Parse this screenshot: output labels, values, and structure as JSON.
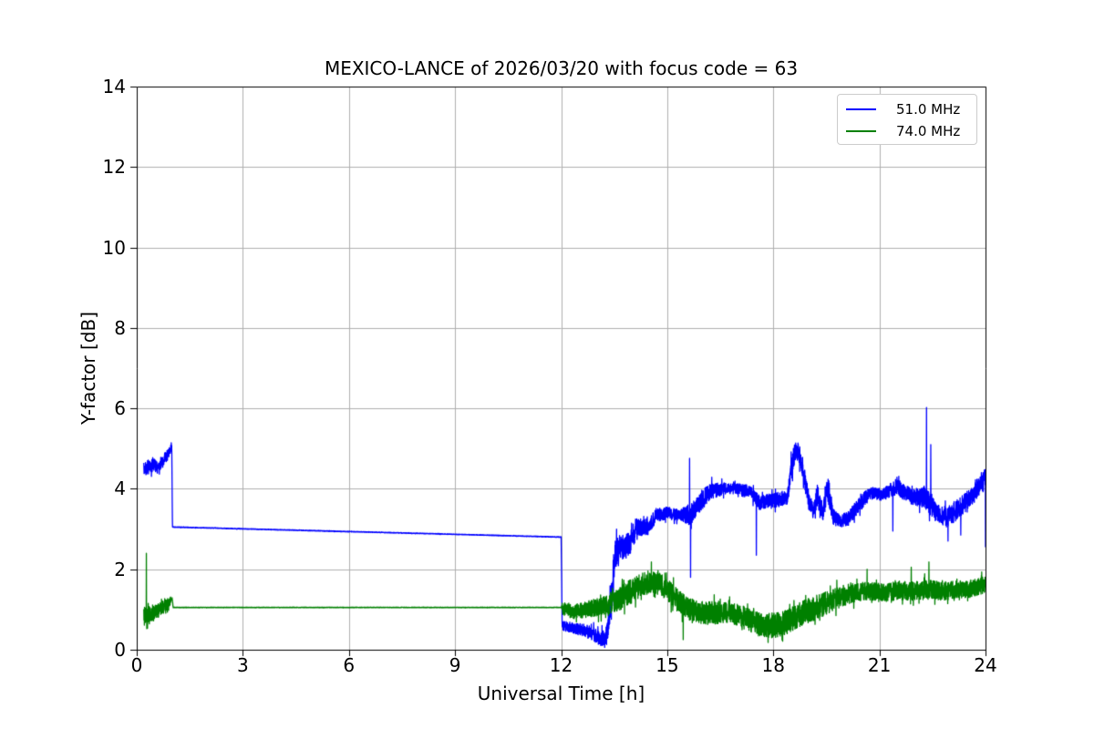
{
  "chart_data": {
    "type": "line",
    "title": "MEXICO-LANCE of 2026/03/20 with focus code = 63",
    "xlabel": "Universal Time [h]",
    "ylabel": "Y-factor [dB]",
    "xlim": [
      0,
      24
    ],
    "ylim": [
      0,
      14
    ],
    "xticks": [
      0,
      3,
      6,
      9,
      12,
      15,
      18,
      21,
      24
    ],
    "yticks": [
      0,
      2,
      4,
      6,
      8,
      10,
      12,
      14
    ],
    "grid": true,
    "grid_color": "#b0b0b0",
    "axis_color": "#000000",
    "background": "#ffffff",
    "legend": {
      "position": "top-right",
      "entries": [
        {
          "label": "51.0 MHz",
          "color": "#0000ff"
        },
        {
          "label": "74.0 MHz",
          "color": "#008000"
        }
      ]
    },
    "series_note": "envelope rows are [x_hours, mean_dB, noise_halfamplitude_dB]; spikes are [x_hours, value_dB] outliers read from the plot",
    "series": [
      {
        "name": "51.0 MHz",
        "color": "#0000ff",
        "envelope": [
          [
            0.2,
            4.5,
            0.15
          ],
          [
            0.35,
            4.55,
            0.18
          ],
          [
            0.5,
            4.6,
            0.15
          ],
          [
            0.62,
            4.5,
            0.16
          ],
          [
            0.75,
            4.7,
            0.15
          ],
          [
            0.88,
            4.85,
            0.14
          ],
          [
            0.97,
            5.02,
            0.08
          ],
          [
            0.99,
            5.08,
            0.03
          ],
          [
            1.01,
            3.05,
            0.008
          ],
          [
            12.0,
            2.8,
            0.008
          ],
          [
            12.03,
            0.6,
            0.12
          ],
          [
            12.3,
            0.55,
            0.13
          ],
          [
            12.6,
            0.5,
            0.15
          ],
          [
            12.9,
            0.4,
            0.18
          ],
          [
            13.1,
            0.28,
            0.18
          ],
          [
            13.28,
            0.33,
            0.22
          ],
          [
            13.42,
            1.3,
            0.55
          ],
          [
            13.55,
            2.45,
            0.45
          ],
          [
            13.75,
            2.55,
            0.3
          ],
          [
            13.95,
            2.65,
            0.3
          ],
          [
            14.15,
            3.05,
            0.22
          ],
          [
            14.45,
            3.05,
            0.2
          ],
          [
            14.7,
            3.35,
            0.18
          ],
          [
            15.0,
            3.4,
            0.15
          ],
          [
            15.35,
            3.35,
            0.15
          ],
          [
            15.65,
            3.35,
            0.25
          ],
          [
            15.95,
            3.7,
            0.25
          ],
          [
            16.25,
            3.95,
            0.2
          ],
          [
            16.6,
            4.0,
            0.15
          ],
          [
            17.0,
            4.0,
            0.13
          ],
          [
            17.35,
            3.95,
            0.15
          ],
          [
            17.6,
            3.65,
            0.2
          ],
          [
            18.0,
            3.7,
            0.18
          ],
          [
            18.4,
            3.8,
            0.2
          ],
          [
            18.52,
            4.6,
            0.3
          ],
          [
            18.65,
            5.0,
            0.22
          ],
          [
            18.8,
            4.7,
            0.28
          ],
          [
            19.0,
            3.7,
            0.25
          ],
          [
            19.12,
            3.45,
            0.18
          ],
          [
            19.25,
            3.85,
            0.3
          ],
          [
            19.4,
            3.4,
            0.2
          ],
          [
            19.55,
            4.0,
            0.35
          ],
          [
            19.7,
            3.3,
            0.2
          ],
          [
            19.9,
            3.2,
            0.15
          ],
          [
            20.1,
            3.25,
            0.18
          ],
          [
            20.35,
            3.5,
            0.2
          ],
          [
            20.6,
            3.8,
            0.18
          ],
          [
            20.85,
            3.9,
            0.15
          ],
          [
            21.1,
            3.85,
            0.15
          ],
          [
            21.3,
            3.95,
            0.18
          ],
          [
            21.5,
            4.1,
            0.22
          ],
          [
            21.7,
            3.9,
            0.2
          ],
          [
            21.95,
            3.8,
            0.2
          ],
          [
            22.2,
            3.8,
            0.25
          ],
          [
            22.4,
            3.7,
            0.3
          ],
          [
            22.6,
            3.4,
            0.22
          ],
          [
            22.9,
            3.3,
            0.25
          ],
          [
            23.1,
            3.4,
            0.25
          ],
          [
            23.35,
            3.6,
            0.25
          ],
          [
            23.6,
            3.8,
            0.22
          ],
          [
            23.85,
            4.05,
            0.25
          ],
          [
            24.0,
            4.3,
            0.28
          ]
        ],
        "spikes": [
          [
            15.63,
            4.76
          ],
          [
            15.66,
            1.8
          ],
          [
            17.52,
            2.35
          ],
          [
            21.38,
            2.95
          ],
          [
            22.33,
            6.02
          ],
          [
            22.45,
            5.1
          ],
          [
            22.94,
            2.7
          ],
          [
            23.3,
            2.85
          ],
          [
            24.0,
            2.55
          ]
        ]
      },
      {
        "name": "74.0 MHz",
        "color": "#008000",
        "envelope": [
          [
            0.2,
            0.78,
            0.28
          ],
          [
            0.4,
            0.88,
            0.22
          ],
          [
            0.6,
            0.98,
            0.18
          ],
          [
            0.8,
            1.08,
            0.15
          ],
          [
            0.95,
            1.22,
            0.1
          ],
          [
            1.0,
            1.28,
            0.05
          ],
          [
            1.03,
            1.05,
            0.007
          ],
          [
            12.0,
            1.05,
            0.007
          ],
          [
            12.04,
            1.0,
            0.18
          ],
          [
            12.4,
            0.95,
            0.18
          ],
          [
            12.7,
            1.0,
            0.2
          ],
          [
            13.0,
            1.05,
            0.22
          ],
          [
            13.3,
            1.12,
            0.25
          ],
          [
            13.6,
            1.25,
            0.3
          ],
          [
            13.9,
            1.42,
            0.3
          ],
          [
            14.2,
            1.58,
            0.3
          ],
          [
            14.5,
            1.7,
            0.28
          ],
          [
            14.75,
            1.65,
            0.28
          ],
          [
            15.0,
            1.5,
            0.28
          ],
          [
            15.3,
            1.22,
            0.28
          ],
          [
            15.6,
            1.02,
            0.28
          ],
          [
            16.0,
            0.92,
            0.28
          ],
          [
            16.4,
            0.92,
            0.28
          ],
          [
            16.8,
            0.95,
            0.28
          ],
          [
            17.2,
            0.78,
            0.28
          ],
          [
            17.6,
            0.62,
            0.3
          ],
          [
            18.0,
            0.6,
            0.32
          ],
          [
            18.4,
            0.7,
            0.3
          ],
          [
            18.8,
            0.9,
            0.3
          ],
          [
            19.2,
            1.05,
            0.3
          ],
          [
            19.6,
            1.2,
            0.28
          ],
          [
            20.0,
            1.35,
            0.26
          ],
          [
            20.4,
            1.45,
            0.24
          ],
          [
            20.8,
            1.45,
            0.22
          ],
          [
            21.2,
            1.42,
            0.22
          ],
          [
            21.6,
            1.48,
            0.24
          ],
          [
            22.0,
            1.45,
            0.24
          ],
          [
            22.4,
            1.5,
            0.25
          ],
          [
            22.8,
            1.45,
            0.22
          ],
          [
            23.2,
            1.5,
            0.22
          ],
          [
            23.6,
            1.52,
            0.22
          ],
          [
            24.0,
            1.62,
            0.2
          ]
        ],
        "spikes": [
          [
            0.27,
            2.4
          ],
          [
            14.55,
            2.18
          ],
          [
            15.45,
            0.25
          ],
          [
            17.85,
            0.18
          ],
          [
            20.65,
            2.0
          ],
          [
            21.9,
            2.05
          ],
          [
            22.4,
            2.18
          ]
        ]
      }
    ]
  }
}
